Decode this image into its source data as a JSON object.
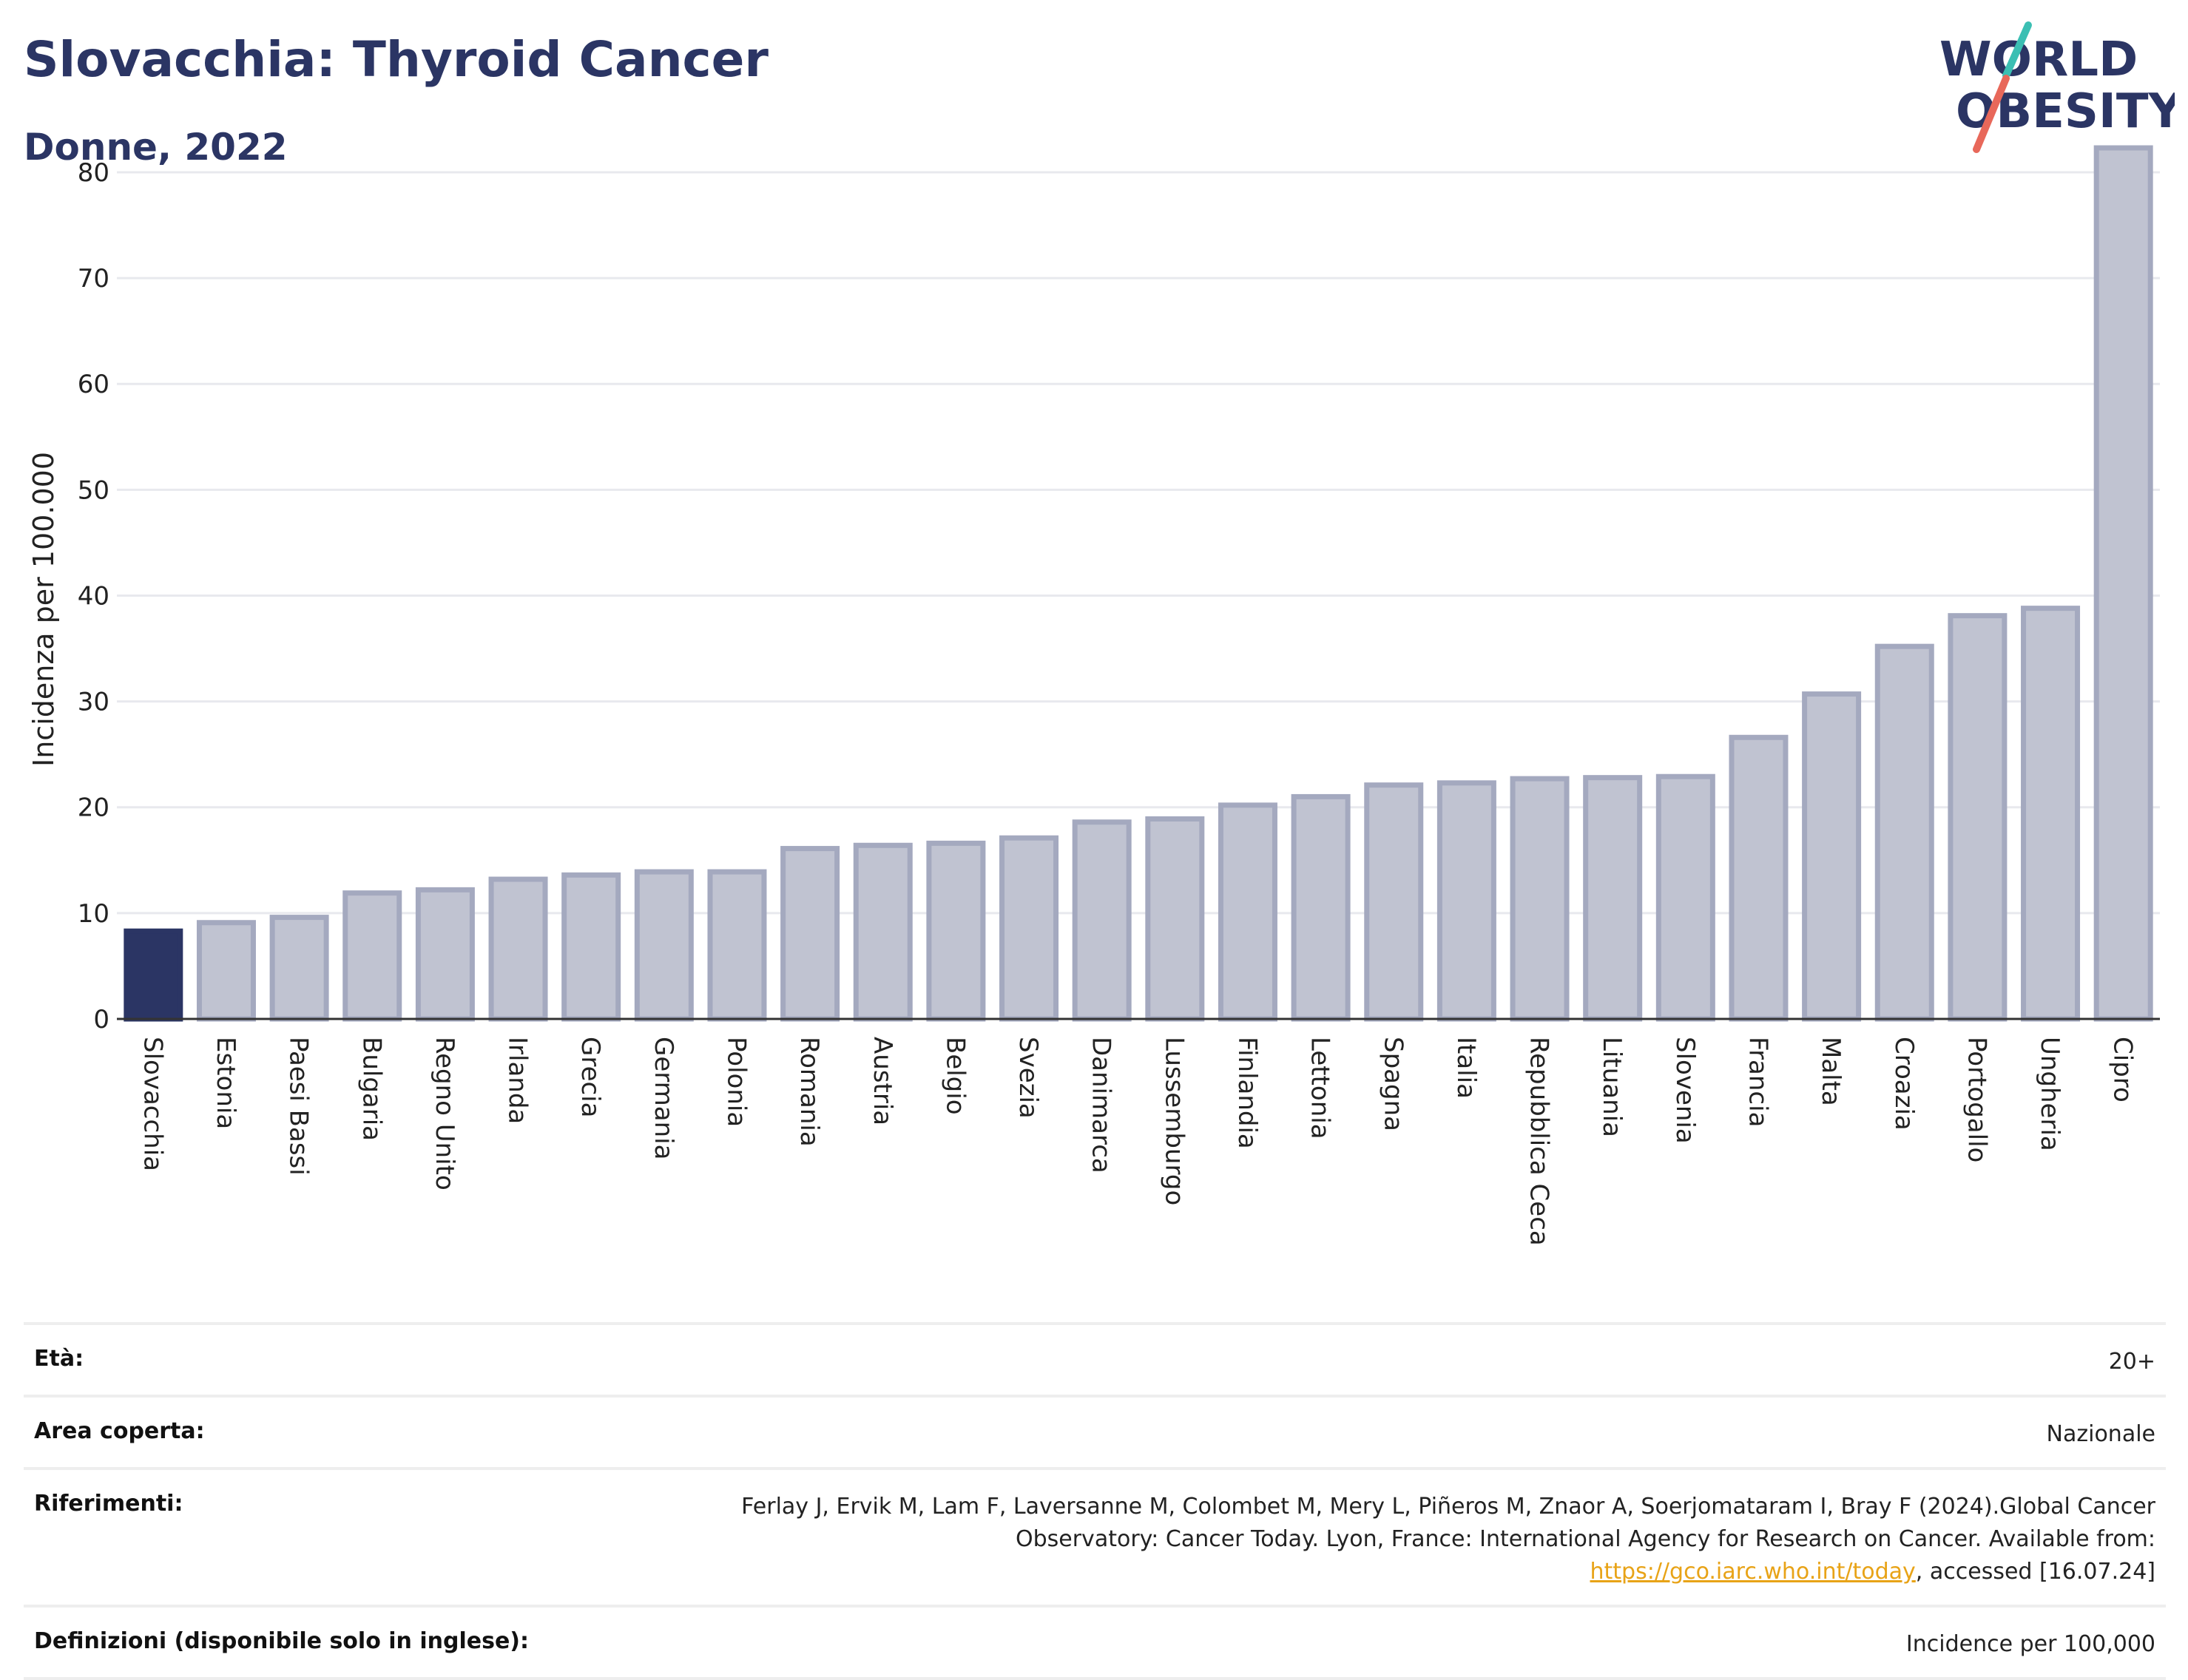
{
  "header": {
    "title": "Slovacchia: Thyroid Cancer",
    "subtitle": "Donne, 2022"
  },
  "logo": {
    "line1": "WORLD",
    "line2": "OBESITY",
    "colors": {
      "text": "#2b3564",
      "slash_teal": "#3bbfb3",
      "slash_red": "#e8685a"
    }
  },
  "chart_data": {
    "type": "bar",
    "ylabel": "Incidenza per 100.000",
    "ylim": [
      0,
      83
    ],
    "yticks": [
      0,
      10,
      20,
      30,
      40,
      50,
      60,
      70,
      80
    ],
    "grid": true,
    "categories": [
      "Slovacchia",
      "Estonia",
      "Paesi Bassi",
      "Bulgaria",
      "Regno Unito",
      "Irlanda",
      "Grecia",
      "Germania",
      "Polonia",
      "Romania",
      "Austria",
      "Belgio",
      "Svezia",
      "Danimarca",
      "Lussemburgo",
      "Finlandia",
      "Lettonia",
      "Spagna",
      "Italia",
      "Repubblica Ceca",
      "Lituania",
      "Slovenia",
      "Francia",
      "Malta",
      "Croazia",
      "Portogallo",
      "Ungheria",
      "Cipro"
    ],
    "values": [
      8.3,
      9.1,
      9.6,
      11.9,
      12.2,
      13.2,
      13.6,
      13.9,
      13.9,
      16.1,
      16.4,
      16.6,
      17.1,
      18.6,
      18.9,
      20.2,
      21.0,
      22.1,
      22.3,
      22.7,
      22.8,
      22.9,
      26.6,
      30.7,
      35.2,
      38.1,
      38.8,
      82.3
    ],
    "highlight_index": 0,
    "colors": {
      "highlight": "#2b3564",
      "bar_fill": "#c0c3d1",
      "bar_stroke": "#a4a9bf"
    }
  },
  "info": {
    "age_label": "Età:",
    "age_value": "20+",
    "area_label": "Area coperta:",
    "area_value": "Nazionale",
    "refs_label": "Riferimenti:",
    "refs_text_1": "Ferlay J, Ervik M, Lam F, Laversanne M, Colombet M, Mery L, Piñeros M, Znaor A, Soerjomataram I, Bray F (2024).Global Cancer Observatory: Cancer Today. Lyon, France: International Agency for Research on Cancer. Available from: ",
    "refs_link": "https://gco.iarc.who.int/today",
    "refs_text_2": ", accessed [16.07.24]",
    "defs_label": "Definizioni (disponibile solo in inglese):",
    "defs_value": "Incidence per 100,000"
  }
}
